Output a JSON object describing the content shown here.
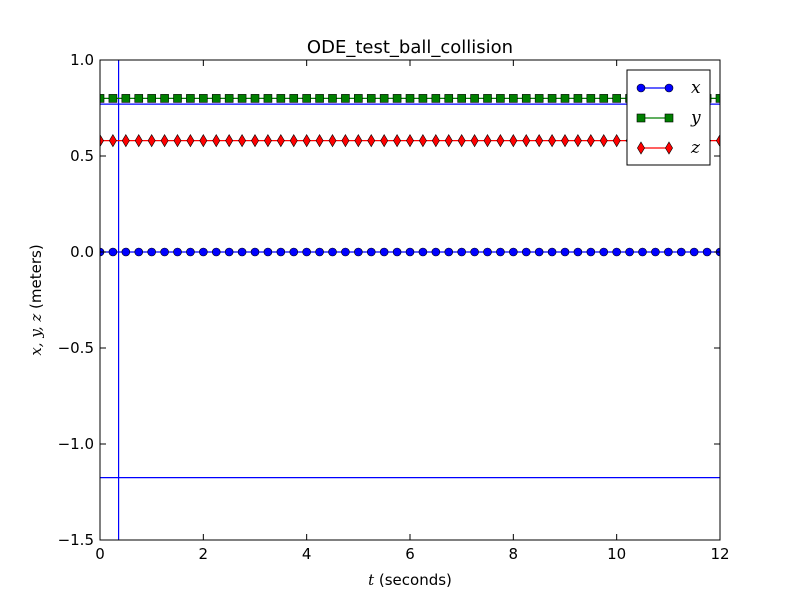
{
  "chart_data": {
    "type": "line",
    "title": "ODE_test_ball_collision",
    "xlabel": {
      "var": "t",
      "text": " (seconds)"
    },
    "ylabel": {
      "vars": "x, y, z",
      "text": " (meters)"
    },
    "xlim": [
      0,
      12
    ],
    "ylim": [
      -1.5,
      1.0
    ],
    "xticks": [
      "0",
      "2",
      "4",
      "6",
      "8",
      "10",
      "12"
    ],
    "yticks": [
      "−1.5",
      "−1.0",
      "−0.5",
      "0.0",
      "0.5",
      "1.0"
    ],
    "xtick_values": [
      0,
      2,
      4,
      6,
      8,
      10,
      12
    ],
    "ytick_values": [
      -1.5,
      -1.0,
      -0.5,
      0.0,
      0.5,
      1.0
    ],
    "grid": false,
    "legend_position": "top-right",
    "x": [
      0.0,
      0.25,
      0.5,
      0.75,
      1.0,
      1.25,
      1.5,
      1.75,
      2.0,
      2.25,
      2.5,
      2.75,
      3.0,
      3.25,
      3.5,
      3.75,
      4.0,
      4.25,
      4.5,
      4.75,
      5.0,
      5.25,
      5.5,
      5.75,
      6.0,
      6.25,
      6.5,
      6.75,
      7.0,
      7.25,
      7.5,
      7.75,
      8.0,
      8.25,
      8.5,
      8.75,
      9.0,
      9.25,
      9.5,
      9.75,
      10.0,
      10.25,
      10.5,
      10.75,
      11.0,
      11.25,
      11.5,
      11.75,
      12.0
    ],
    "series": [
      {
        "name": "x",
        "constant": 0.0,
        "color": "#0000ff",
        "marker": "circle"
      },
      {
        "name": "y",
        "constant": 0.8,
        "color": "#007f00",
        "marker": "square"
      },
      {
        "name": "z",
        "constant": 0.58,
        "color": "#ff0000",
        "marker": "diamond"
      }
    ],
    "reference_lines": {
      "vertical_x": 0.36,
      "horizontal_y": [
        0.77,
        -1.175
      ],
      "color": "#0000ff"
    }
  }
}
